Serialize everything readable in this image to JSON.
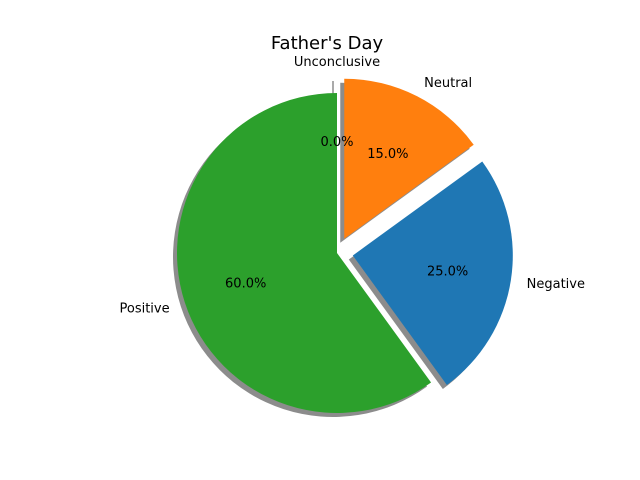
{
  "chart_data": {
    "type": "pie",
    "title": "Father's Day",
    "slices": [
      {
        "label": "Positive",
        "value": 60.0,
        "display": "60.0%",
        "color": "#2ca02c",
        "explode": 0.0
      },
      {
        "label": "Negative",
        "value": 25.0,
        "display": "25.0%",
        "color": "#1f77b4",
        "explode": 0.1
      },
      {
        "label": "Neutral",
        "value": 15.0,
        "display": "15.0%",
        "color": "#ff7f0e",
        "explode": 0.1
      },
      {
        "label": "Unconclusive",
        "value": 0.0,
        "display": "0.0%",
        "color": "#d62728",
        "explode": 0.1
      }
    ],
    "start_angle_deg": 90,
    "direction": "counterclockwise",
    "shadow": true
  }
}
